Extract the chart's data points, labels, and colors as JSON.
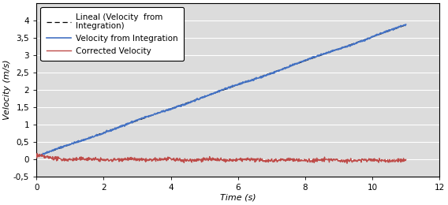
{
  "title": "",
  "xlabel": "Time (s)",
  "ylabel": "Velocity (m/s)",
  "xlim": [
    0,
    12
  ],
  "ylim": [
    -0.5,
    4.5
  ],
  "yticks": [
    -0.5,
    0,
    0.5,
    1,
    1.5,
    2,
    2.5,
    3,
    3.5,
    4
  ],
  "xticks": [
    0,
    2,
    4,
    6,
    8,
    10,
    12
  ],
  "velocity_color": "#4472C4",
  "corrected_color": "#BE4B48",
  "lineal_color": "#000000",
  "legend_labels": [
    "Velocity from Integration",
    "Corrected Velocity",
    "Lineal (Velocity  from\nIntegration)"
  ],
  "background_color": "#FFFFFF",
  "plot_bg_color": "#DCDCDC",
  "grid_color": "#FFFFFF",
  "t_max": 11.0,
  "slope": 0.345,
  "intercept": 0.08
}
